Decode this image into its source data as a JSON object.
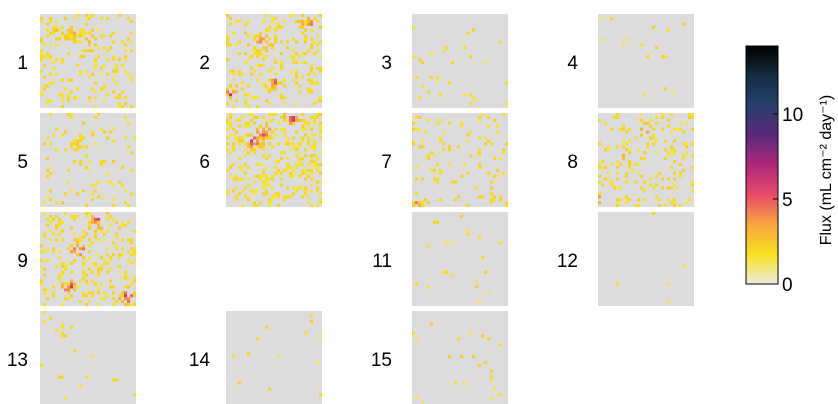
{
  "chart_data": {
    "type": "heatmap",
    "layout": "small-multiples",
    "grid_resolution": 32,
    "panels": [
      {
        "label": "1",
        "density": 0.16,
        "hotspots": [
          [
            0.35,
            0.25
          ],
          [
            0.2,
            0.2
          ],
          [
            0.5,
            0.3
          ]
        ],
        "intensity": 2.0
      },
      {
        "label": "2",
        "density": 0.22,
        "hotspots": [
          [
            0.4,
            0.3
          ],
          [
            0.05,
            0.85
          ],
          [
            0.5,
            0.75
          ],
          [
            0.85,
            0.1
          ]
        ],
        "intensity": 5.0
      },
      {
        "label": "3",
        "density": 0.03,
        "hotspots": [],
        "intensity": 0.5
      },
      {
        "label": "4",
        "density": 0.02,
        "hotspots": [],
        "intensity": 0.5
      },
      {
        "label": "5",
        "density": 0.08,
        "hotspots": [
          [
            0.4,
            0.3
          ]
        ],
        "intensity": 1.0
      },
      {
        "label": "6",
        "density": 0.3,
        "hotspots": [
          [
            0.3,
            0.3
          ],
          [
            0.4,
            0.2
          ],
          [
            0.7,
            0.05
          ]
        ],
        "intensity": 5.5
      },
      {
        "label": "7",
        "density": 0.1,
        "hotspots": [
          [
            0.05,
            0.95
          ]
        ],
        "intensity": 2.5
      },
      {
        "label": "8",
        "density": 0.14,
        "hotspots": [
          [
            0.5,
            0.2
          ],
          [
            0.3,
            0.5
          ],
          [
            0.05,
            0.9
          ]
        ],
        "intensity": 4.5
      },
      {
        "label": "9",
        "density": 0.22,
        "hotspots": [
          [
            0.4,
            0.4
          ],
          [
            0.3,
            0.8
          ],
          [
            0.9,
            0.9
          ],
          [
            0.6,
            0.1
          ]
        ],
        "intensity": 6.0
      },
      {
        "label": "11",
        "density": 0.015,
        "hotspots": [],
        "intensity": 0.4
      },
      {
        "label": "12",
        "density": 0.01,
        "hotspots": [],
        "intensity": 0.4
      },
      {
        "label": "13",
        "density": 0.015,
        "hotspots": [
          [
            0.25,
            0.2
          ]
        ],
        "intensity": 1.0
      },
      {
        "label": "14",
        "density": 0.01,
        "hotspots": [],
        "intensity": 0.4
      },
      {
        "label": "15",
        "density": 0.03,
        "hotspots": [],
        "intensity": 0.8
      }
    ],
    "colorbar": {
      "label": "Flux (mL cm⁻² day⁻¹)",
      "min": 0,
      "max": 14,
      "ticks": [
        0,
        5,
        10
      ],
      "colormap": [
        "#ececdc",
        "#f5e020",
        "#f8a640",
        "#e84a6a",
        "#b0287a",
        "#5a2a7a",
        "#28406e",
        "#142d40",
        "#000000"
      ]
    },
    "background_color": "#dcdcdc"
  }
}
